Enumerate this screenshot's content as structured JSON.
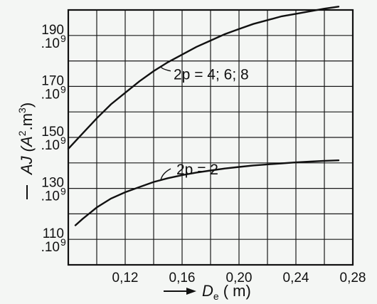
{
  "chart_data": {
    "type": "line",
    "xlabel": "D",
    "xlabel_sub": "e",
    "xlabel_unit": "( m)",
    "ylabel": "AJ (A",
    "ylabel_sup1": "2",
    "ylabel_mid": ".m",
    "ylabel_sup2": "3",
    "ylabel_end": ")",
    "xlim": [
      0.08,
      0.28
    ],
    "ylim": [
      100,
      200
    ],
    "x_ticks": [
      {
        "value": 0.12,
        "label": "0,12"
      },
      {
        "value": 0.16,
        "label": "0,16"
      },
      {
        "value": 0.2,
        "label": "0,20"
      },
      {
        "value": 0.24,
        "label": "0,24"
      },
      {
        "value": 0.28,
        "label": "0,28"
      }
    ],
    "y_ticks": [
      {
        "value": 110,
        "label": "110",
        "exp_label": ".10",
        "exp": "9"
      },
      {
        "value": 130,
        "label": "130",
        "exp_label": ".10",
        "exp": "9"
      },
      {
        "value": 150,
        "label": "150",
        "exp_label": ".10",
        "exp": "9"
      },
      {
        "value": 170,
        "label": "170",
        "exp_label": ".10",
        "exp": "9"
      },
      {
        "value": 190,
        "label": "190",
        "exp_label": ".10",
        "exp": "9"
      }
    ],
    "grid": true,
    "series": [
      {
        "name": "2p = 4; 6; 8",
        "x": [
          0.08,
          0.09,
          0.1,
          0.11,
          0.12,
          0.13,
          0.14,
          0.15,
          0.16,
          0.17,
          0.18,
          0.19,
          0.2,
          0.21,
          0.22,
          0.23,
          0.24,
          0.25,
          0.26,
          0.27
        ],
        "y": [
          145.5,
          151.5,
          157.5,
          163,
          167.5,
          172,
          176,
          179.5,
          182.5,
          185.5,
          188,
          190.5,
          192.5,
          194.5,
          196,
          197.5,
          198.5,
          199.5,
          200.5,
          201.3
        ]
      },
      {
        "name": "2p = 2",
        "x": [
          0.085,
          0.09,
          0.1,
          0.11,
          0.12,
          0.13,
          0.14,
          0.15,
          0.16,
          0.17,
          0.18,
          0.19,
          0.2,
          0.21,
          0.22,
          0.23,
          0.24,
          0.25,
          0.26,
          0.27
        ],
        "y": [
          115.5,
          118,
          122.5,
          126,
          128.5,
          130.5,
          132.5,
          134,
          135.2,
          136.2,
          137,
          137.8,
          138.4,
          139,
          139.4,
          139.8,
          140.2,
          140.5,
          140.8,
          141
        ]
      }
    ],
    "annotations": [
      {
        "series": 0,
        "text": "2p = 4; 6; 8",
        "at_x": 0.145
      },
      {
        "series": 1,
        "text": "2p = 2",
        "at_x": 0.145
      }
    ]
  }
}
